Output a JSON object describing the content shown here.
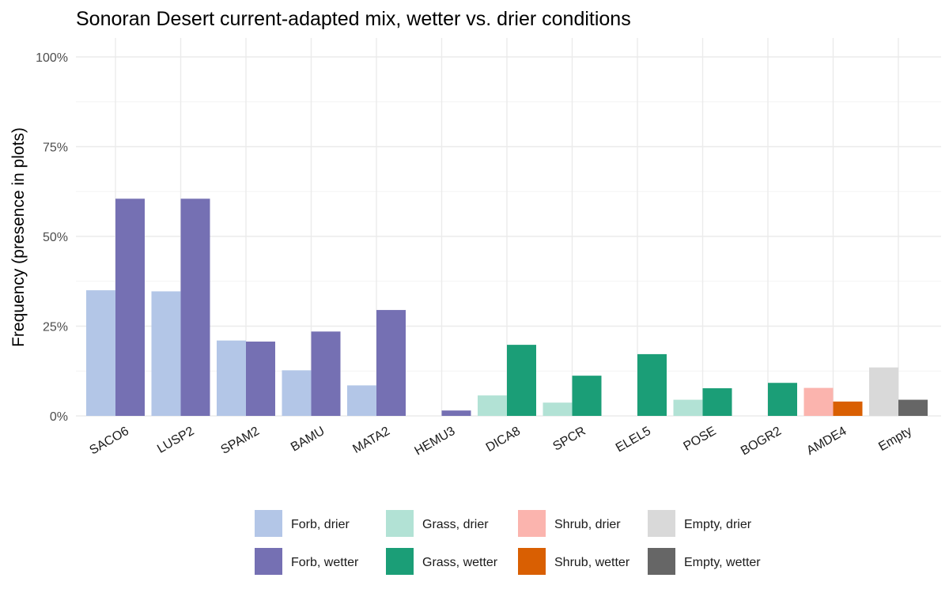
{
  "chart_data": {
    "type": "bar",
    "title": "Sonoran Desert current-adapted mix, wetter vs. drier conditions",
    "xlabel": "",
    "ylabel": "Frequency (presence in plots)",
    "ylim": [
      0,
      1
    ],
    "yticks": [
      {
        "value": 0,
        "label": "0%"
      },
      {
        "value": 0.25,
        "label": "25%"
      },
      {
        "value": 0.5,
        "label": "50%"
      },
      {
        "value": 0.75,
        "label": "75%"
      },
      {
        "value": 1.0,
        "label": "100%"
      }
    ],
    "grid": true,
    "legend_position": "bottom",
    "categories": [
      {
        "label": "SACO6",
        "drier": 0.35,
        "wetter": 0.605,
        "drier_group": "Forb, drier",
        "wetter_group": "Forb, wetter"
      },
      {
        "label": "LUSP2",
        "drier": 0.347,
        "wetter": 0.605,
        "drier_group": "Forb, drier",
        "wetter_group": "Forb, wetter"
      },
      {
        "label": "SPAM2",
        "drier": 0.21,
        "wetter": 0.207,
        "drier_group": "Forb, drier",
        "wetter_group": "Forb, wetter"
      },
      {
        "label": "BAMU",
        "drier": 0.127,
        "wetter": 0.235,
        "drier_group": "Forb, drier",
        "wetter_group": "Forb, wetter"
      },
      {
        "label": "MATA2",
        "drier": 0.085,
        "wetter": 0.295,
        "drier_group": "Forb, drier",
        "wetter_group": "Forb, wetter"
      },
      {
        "label": "HEMU3",
        "drier": 0,
        "wetter": 0.015,
        "drier_group": "Forb, drier",
        "wetter_group": "Forb, wetter"
      },
      {
        "label": "DICA8",
        "drier": 0.057,
        "wetter": 0.198,
        "drier_group": "Grass, drier",
        "wetter_group": "Grass, wetter"
      },
      {
        "label": "SPCR",
        "drier": 0.037,
        "wetter": 0.112,
        "drier_group": "Grass, drier",
        "wetter_group": "Grass, wetter"
      },
      {
        "label": "ELEL5",
        "drier": 0,
        "wetter": 0.172,
        "drier_group": "Grass, drier",
        "wetter_group": "Grass, wetter"
      },
      {
        "label": "POSE",
        "drier": 0.045,
        "wetter": 0.077,
        "drier_group": "Grass, drier",
        "wetter_group": "Grass, wetter"
      },
      {
        "label": "BOGR2",
        "drier": 0,
        "wetter": 0.092,
        "drier_group": "Grass, drier",
        "wetter_group": "Grass, wetter"
      },
      {
        "label": "AMDE4",
        "drier": 0.078,
        "wetter": 0.04,
        "drier_group": "Shrub, drier",
        "wetter_group": "Shrub, wetter"
      },
      {
        "label": "Empty",
        "drier": 0.135,
        "wetter": 0.045,
        "drier_group": "Empty, drier",
        "wetter_group": "Empty, wetter"
      }
    ],
    "legend": [
      {
        "name": "Forb, drier",
        "color": "#b3c6e7"
      },
      {
        "name": "Forb, wetter",
        "color": "#7570b3"
      },
      {
        "name": "Grass, drier",
        "color": "#b2e2d5"
      },
      {
        "name": "Grass, wetter",
        "color": "#1b9e77"
      },
      {
        "name": "Shrub, drier",
        "color": "#fbb4ae"
      },
      {
        "name": "Shrub, wetter",
        "color": "#d95f02"
      },
      {
        "name": "Empty, drier",
        "color": "#d9d9d9"
      },
      {
        "name": "Empty, wetter",
        "color": "#666666"
      }
    ]
  }
}
